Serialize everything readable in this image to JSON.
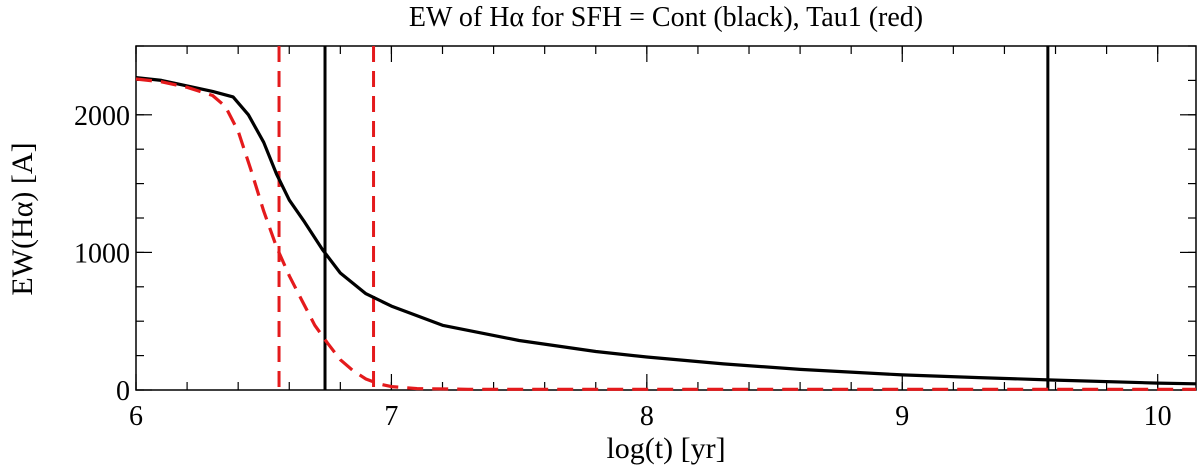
{
  "chart_data": {
    "type": "line",
    "title": "EW of Hα for SFH = Cont (black), Tau1 (red)",
    "xlabel": "log(t) [yr]",
    "ylabel": "EW(Hα) [A]",
    "xlim": [
      6.0,
      10.15
    ],
    "ylim": [
      0,
      2500
    ],
    "xticks": [
      6,
      7,
      8,
      9,
      10
    ],
    "yticks": [
      0,
      1000,
      2000
    ],
    "minor_x_step": 0.2,
    "minor_y_step": 250,
    "grid": false,
    "series": [
      {
        "color": "#000000",
        "dash": "solid",
        "x": [
          6.0,
          6.1,
          6.2,
          6.3,
          6.38,
          6.44,
          6.5,
          6.55,
          6.6,
          6.66,
          6.73,
          6.8,
          6.9,
          7.0,
          7.2,
          7.5,
          7.8,
          8.0,
          8.3,
          8.6,
          9.0,
          9.3,
          9.6,
          10.0,
          10.15
        ],
        "y": [
          2270,
          2250,
          2210,
          2170,
          2130,
          2000,
          1800,
          1570,
          1380,
          1220,
          1020,
          850,
          700,
          610,
          470,
          360,
          280,
          240,
          190,
          150,
          110,
          90,
          72,
          50,
          45
        ]
      },
      {
        "color": "#e41a1c",
        "dash": "dashed",
        "x": [
          6.0,
          6.1,
          6.2,
          6.3,
          6.35,
          6.4,
          6.45,
          6.5,
          6.55,
          6.6,
          6.65,
          6.7,
          6.75,
          6.8,
          6.85,
          6.9,
          6.95,
          7.0,
          7.1,
          7.3,
          8.0,
          9.0,
          10.0,
          10.15
        ],
        "y": [
          2260,
          2240,
          2200,
          2140,
          2060,
          1880,
          1600,
          1300,
          1040,
          830,
          650,
          470,
          340,
          220,
          140,
          80,
          45,
          25,
          10,
          5,
          5,
          5,
          5,
          5
        ]
      }
    ],
    "vlines": [
      {
        "x": 6.74,
        "color": "#000000",
        "dash": "solid"
      },
      {
        "x": 9.57,
        "color": "#000000",
        "dash": "solid"
      },
      {
        "x": 6.56,
        "color": "#e41a1c",
        "dash": "dashed"
      },
      {
        "x": 6.93,
        "color": "#e41a1c",
        "dash": "dashed"
      }
    ]
  }
}
